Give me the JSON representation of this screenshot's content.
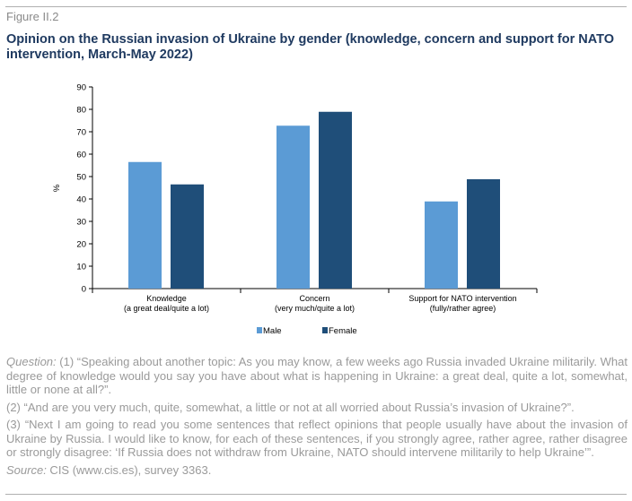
{
  "figure_label": "Figure II.2",
  "title": "Opinion on the Russian invasion of Ukraine by gender (knowledge, concern and support for NATO intervention, March-May 2022)",
  "chart_data": {
    "type": "bar",
    "title": "Opinion on the Russian invasion of Ukraine by gender (knowledge, concern and support for NATO intervention, March-May 2022)",
    "categories": [
      [
        "Knowledge",
        "(a great deal/quite a lot)"
      ],
      [
        "Concern",
        "(very much/quite a lot)"
      ],
      [
        "Support for NATO intervention",
        "(fully/rather agree)"
      ]
    ],
    "series": [
      {
        "name": "Male",
        "color": "#5b9bd5",
        "values": [
          56.5,
          72.7,
          38.9
        ]
      },
      {
        "name": "Female",
        "color": "#1f4e79",
        "values": [
          46.5,
          78.9,
          48.8
        ]
      }
    ],
    "ylabel": "%",
    "xlabel": "",
    "ylim": [
      0,
      90
    ],
    "yticks": [
      "0",
      "10",
      "20",
      "30",
      "40",
      "50",
      "60",
      "70",
      "80",
      "90"
    ],
    "grid": false,
    "legend": "bottom-center"
  },
  "notes": {
    "question_label": "Question:",
    "q1": " (1) “Speaking about another topic: As you may know, a few weeks ago Russia invaded Ukraine militarily. What degree of knowledge would you say you have about what is happening in Ukraine: a great deal, quite a lot, somewhat, little or none at all?”.",
    "q2": "(2) “And are you very much, quite, somewhat, a little or not at all worried about Russia’s invasion of Ukraine?”.",
    "q3": "(3) “Next I am going to read you some sentences that reflect opinions that people usually have about the invasion of Ukraine by Russia. I would like to know, for each of these sentences, if you strongly agree, rather agree, rather disagree or strongly disagree: ‘If Russia does not withdraw from Ukraine, NATO should intervene militarily to help Ukraine’”.",
    "source_label": "Source:",
    "source": " CIS (www.cis.es), survey 3363."
  }
}
